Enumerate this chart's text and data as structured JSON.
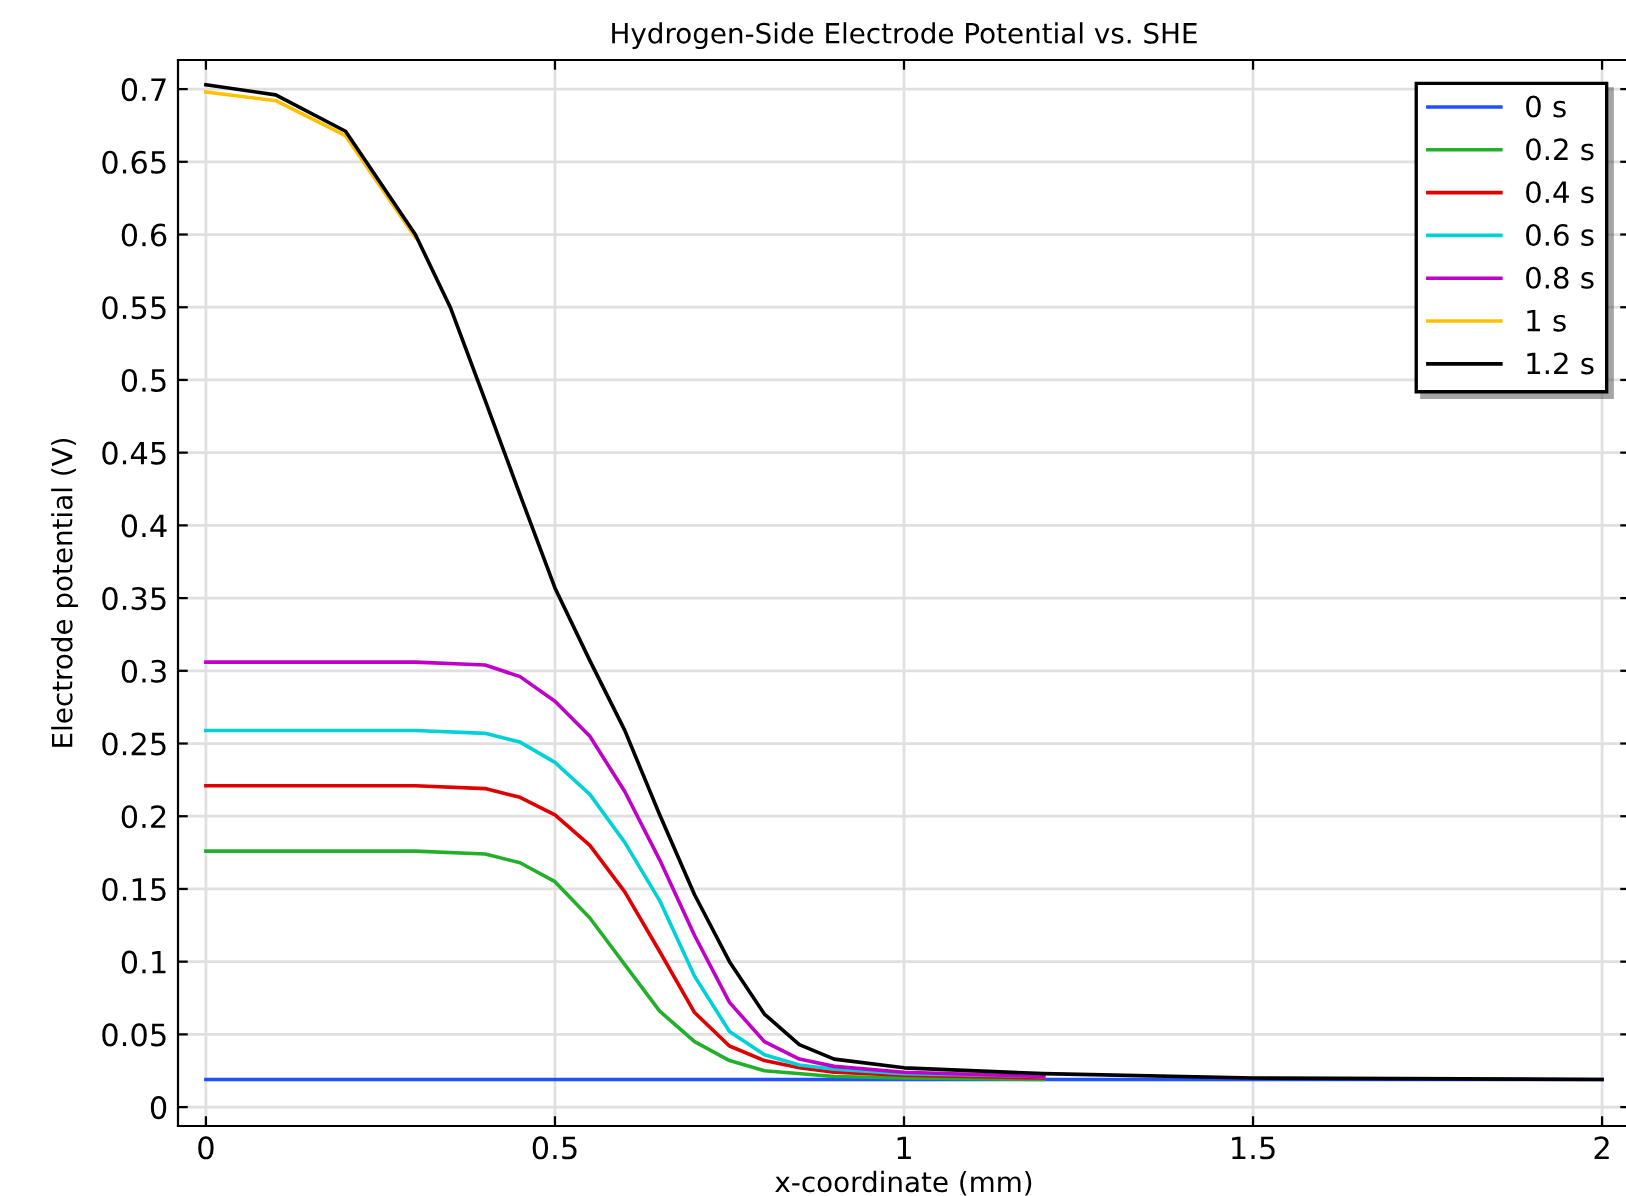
{
  "chart_data": {
    "type": "line",
    "title": "Hydrogen-Side Electrode Potential vs. SHE",
    "xlabel": "x-coordinate (mm)",
    "ylabel": "Electrode potential (V)",
    "xlim": [
      -0.04,
      2.04
    ],
    "ylim": [
      -0.013,
      0.72
    ],
    "xticks": [
      0,
      0.5,
      1,
      1.5,
      2
    ],
    "yticks": [
      0,
      0.05,
      0.1,
      0.15,
      0.2,
      0.25,
      0.3,
      0.35,
      0.4,
      0.45,
      0.5,
      0.55,
      0.6,
      0.65,
      0.7
    ],
    "grid": true,
    "legend": "top right",
    "marker": "none",
    "line_style": "solid",
    "series": [
      {
        "name": "0 s",
        "color": "#1f4fff",
        "x": [
          0,
          0.5,
          1,
          1.5,
          2
        ],
        "values": [
          0.019,
          0.019,
          0.019,
          0.019,
          0.019
        ]
      },
      {
        "name": "0.2 s",
        "color": "#22b02a",
        "x": [
          0,
          0.3,
          0.4,
          0.45,
          0.5,
          0.55,
          0.6,
          0.65,
          0.7,
          0.75,
          0.8,
          0.9,
          1.0,
          1.2
        ],
        "values": [
          0.176,
          0.176,
          0.174,
          0.168,
          0.155,
          0.13,
          0.098,
          0.066,
          0.045,
          0.032,
          0.025,
          0.021,
          0.02,
          0.019
        ]
      },
      {
        "name": "0.4 s",
        "color": "#e00000",
        "x": [
          0,
          0.3,
          0.4,
          0.45,
          0.5,
          0.55,
          0.6,
          0.65,
          0.7,
          0.75,
          0.8,
          0.85,
          0.9,
          1.0,
          1.2
        ],
        "values": [
          0.221,
          0.221,
          0.219,
          0.213,
          0.201,
          0.18,
          0.148,
          0.107,
          0.065,
          0.042,
          0.032,
          0.027,
          0.024,
          0.022,
          0.02
        ]
      },
      {
        "name": "0.6 s",
        "color": "#00d0d8",
        "x": [
          0,
          0.3,
          0.4,
          0.45,
          0.5,
          0.55,
          0.6,
          0.65,
          0.7,
          0.75,
          0.8,
          0.85,
          0.9,
          1.0,
          1.2
        ],
        "values": [
          0.259,
          0.259,
          0.257,
          0.251,
          0.237,
          0.215,
          0.182,
          0.142,
          0.09,
          0.052,
          0.036,
          0.029,
          0.026,
          0.023,
          0.021
        ]
      },
      {
        "name": "0.8 s",
        "color": "#c000c8",
        "x": [
          0,
          0.3,
          0.4,
          0.45,
          0.5,
          0.55,
          0.6,
          0.65,
          0.7,
          0.75,
          0.8,
          0.85,
          0.9,
          1.0,
          1.2
        ],
        "values": [
          0.306,
          0.306,
          0.304,
          0.296,
          0.279,
          0.255,
          0.217,
          0.17,
          0.118,
          0.072,
          0.045,
          0.033,
          0.028,
          0.024,
          0.021
        ]
      },
      {
        "name": "1 s",
        "color": "#ffc000",
        "x": [
          0,
          0.1,
          0.2,
          0.3
        ],
        "values": [
          0.698,
          0.692,
          0.668,
          0.598
        ]
      },
      {
        "name": "1.2 s",
        "color": "#000000",
        "x": [
          0,
          0.1,
          0.2,
          0.3,
          0.35,
          0.4,
          0.45,
          0.5,
          0.55,
          0.6,
          0.65,
          0.7,
          0.75,
          0.8,
          0.85,
          0.9,
          1.0,
          1.2,
          1.5,
          2
        ],
        "values": [
          0.703,
          0.696,
          0.671,
          0.6,
          0.55,
          0.486,
          0.421,
          0.357,
          0.307,
          0.259,
          0.201,
          0.146,
          0.1,
          0.064,
          0.043,
          0.033,
          0.027,
          0.023,
          0.02,
          0.019
        ]
      }
    ]
  }
}
